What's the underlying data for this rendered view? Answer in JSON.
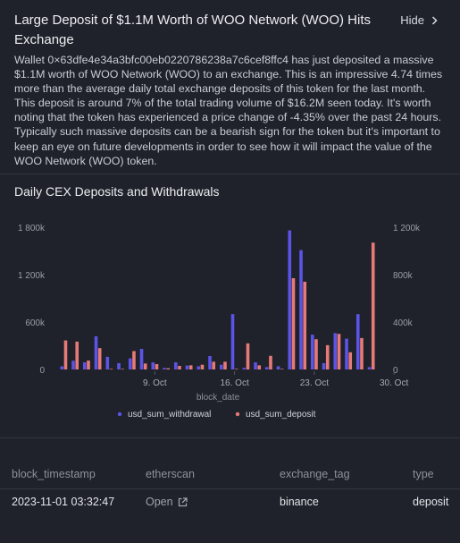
{
  "header": {
    "title": "Large Deposit of $1.1M Worth of WOO Network (WOO) Hits Exchange",
    "hide_label": "Hide"
  },
  "description": "Wallet 0×63dfe4e34a3bfc00eb0220786238a7c6cef8ffc4 has just deposited a massive $1.1M worth of WOO Network (WOO) to an exchange. This is an impressive 4.74 times more than the average daily total exchange deposits of this token for the last month. This deposit is around 7% of the total trading volume of $16.2M seen today. It's worth noting that the token has experienced a price change of -4.35% over the past 24 hours. Typically such massive deposits can be a bearish sign for the token but it's important to keep an eye on future developments in order to see how it will impact the value of the WOO Network (WOO) token.",
  "chart_section_title": "Daily CEX Deposits and Withdrawals",
  "chart_data": {
    "type": "bar",
    "xlabel": "block_date",
    "x_ticks": [
      "9. Oct",
      "16. Oct",
      "23. Oct",
      "30. Oct"
    ],
    "x_tick_days": [
      8,
      15,
      22,
      29
    ],
    "y_left_ticks": [
      "0",
      "600k",
      "1 200k",
      "1 800k"
    ],
    "y_left_values": [
      0,
      600000,
      1200000,
      1800000
    ],
    "y_left_max": 1800000,
    "y_right_ticks": [
      "0",
      "400k",
      "800k",
      "1 200k"
    ],
    "y_right_values": [
      0,
      400000,
      800000,
      1200000
    ],
    "y_right_max": 1200000,
    "legend_position": "bottom",
    "series": [
      {
        "name": "usd_sum_withdrawal",
        "color": "#5b54e6",
        "axis": "left",
        "values": [
          40000,
          110000,
          90000,
          420000,
          160000,
          80000,
          140000,
          260000,
          90000,
          20000,
          90000,
          50000,
          40000,
          170000,
          60000,
          700000,
          20000,
          90000,
          30000,
          40000,
          1760000,
          1510000,
          440000,
          80000,
          460000,
          390000,
          700000,
          30000
        ]
      },
      {
        "name": "usd_sum_deposit",
        "color": "#e77a78",
        "axis": "right",
        "values": [
          245000,
          235000,
          75000,
          180000,
          5000,
          5000,
          155000,
          50000,
          45000,
          10000,
          30000,
          35000,
          40000,
          65000,
          65000,
          5000,
          220000,
          35000,
          115000,
          5000,
          770000,
          740000,
          255000,
          205000,
          300000,
          145000,
          265000,
          1070000
        ]
      }
    ]
  },
  "table": {
    "columns": [
      "block_timestamp",
      "etherscan",
      "exchange_tag",
      "type"
    ],
    "rows": [
      {
        "block_timestamp": "2023-11-01 03:32:47",
        "etherscan": "Open",
        "exchange_tag": "binance",
        "type": "deposit"
      }
    ]
  }
}
